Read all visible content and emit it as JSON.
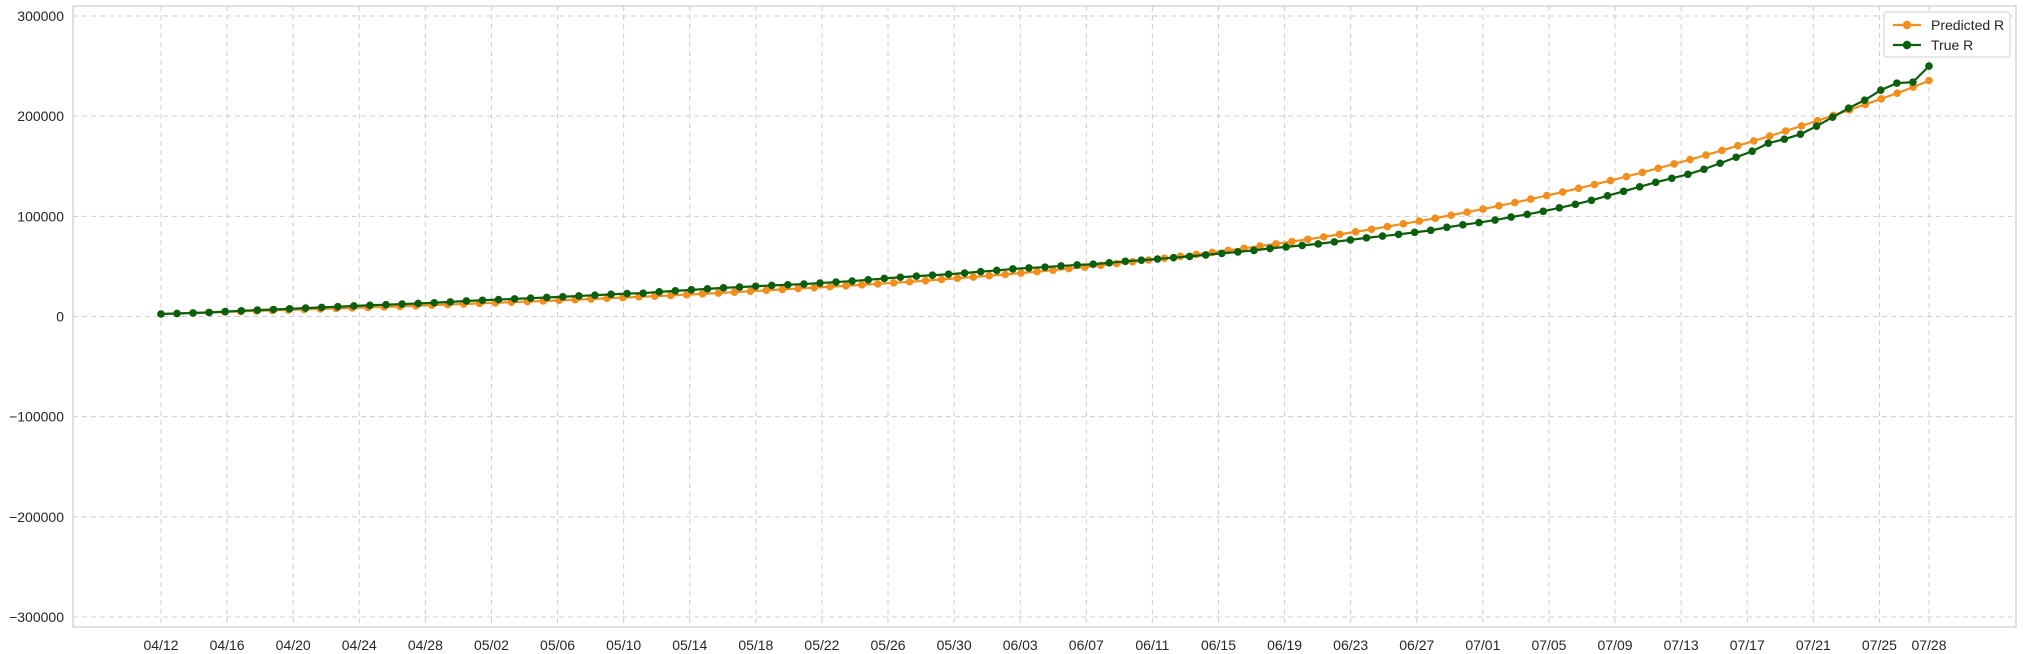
{
  "chart_data": {
    "type": "line",
    "title": "",
    "xlabel": "",
    "ylabel": "",
    "ylim": [
      -310000,
      310000
    ],
    "yticks": [
      -300000,
      -200000,
      -100000,
      0,
      100000,
      200000,
      300000
    ],
    "ytick_labels": [
      "−300000",
      "−200000",
      "−100000",
      "0",
      "100000",
      "200000",
      "300000"
    ],
    "xticks": [
      "04/12",
      "04/16",
      "04/20",
      "04/24",
      "04/28",
      "05/02",
      "05/06",
      "05/10",
      "05/14",
      "05/18",
      "05/22",
      "05/26",
      "05/30",
      "06/03",
      "06/07",
      "06/11",
      "06/15",
      "06/19",
      "06/23",
      "06/27",
      "07/01",
      "07/05",
      "07/09",
      "07/13",
      "07/17",
      "07/21",
      "07/25",
      "07/28"
    ],
    "x_start": "04/12",
    "x_end": "07/28",
    "grid": true,
    "legend_position": "top-right",
    "colors": {
      "predicted": "#f28e1c",
      "true": "#0b5e0b",
      "grid": "#cfcfcf",
      "axes": "#cccccc"
    },
    "series": [
      {
        "name": "Predicted R",
        "color": "#f28e1c",
        "values": [
          2500,
          3100,
          3600,
          4100,
          4600,
          5100,
          5600,
          6100,
          6600,
          7100,
          7600,
          8100,
          8600,
          9100,
          9600,
          10100,
          10700,
          11300,
          11900,
          12500,
          13100,
          13700,
          14300,
          14900,
          15500,
          16100,
          16800,
          17500,
          18200,
          18900,
          19600,
          20300,
          21000,
          21800,
          22600,
          23400,
          24300,
          25200,
          26100,
          27000,
          27900,
          28800,
          29700,
          30600,
          31600,
          32600,
          33600,
          34700,
          35800,
          37000,
          38200,
          39400,
          40700,
          42000,
          43400,
          44800,
          46300,
          47800,
          49400,
          51100,
          52800,
          54600,
          56400,
          58200,
          60100,
          62000,
          64000,
          66000,
          68100,
          70300,
          72500,
          74800,
          77100,
          79500,
          82000,
          84500,
          87100,
          89800,
          92500,
          95300,
          98200,
          101200,
          104200,
          107300,
          110500,
          113800,
          117200,
          120700,
          124300,
          128000,
          131800,
          135700,
          139700,
          143800,
          148000,
          152300,
          156700,
          161200,
          165800,
          170500,
          175300,
          180200,
          185200,
          190300,
          195500,
          200800,
          206200,
          211700,
          217300,
          223000,
          229000,
          235500
        ]
      },
      {
        "name": "True R",
        "color": "#0b5e0b",
        "values": [
          2500,
          3000,
          3500,
          4000,
          4900,
          5700,
          6400,
          7000,
          7700,
          8400,
          9100,
          9800,
          10500,
          11200,
          11800,
          12400,
          13000,
          13700,
          14600,
          15500,
          16200,
          16900,
          17600,
          18300,
          19000,
          19700,
          20500,
          21300,
          22100,
          22900,
          23300,
          24600,
          25600,
          26600,
          27600,
          28600,
          29400,
          30200,
          31000,
          31700,
          32400,
          33400,
          34400,
          35400,
          36600,
          38000,
          39200,
          40300,
          41200,
          42200,
          43400,
          44800,
          46000,
          47500,
          48500,
          49300,
          50500,
          51500,
          52200,
          53600,
          55100,
          56200,
          57400,
          58700,
          60000,
          61500,
          63000,
          64500,
          66000,
          68000,
          69500,
          71000,
          72500,
          74500,
          76500,
          78500,
          80300,
          82000,
          84000,
          86000,
          89000,
          91500,
          93800,
          96300,
          99300,
          102000,
          105000,
          108500,
          112000,
          116000,
          120500,
          125000,
          129500,
          134000,
          138000,
          142000,
          147000,
          153000,
          159000,
          165000,
          173000,
          177000,
          182000,
          190000,
          199000,
          208000,
          216000,
          226000,
          233000,
          234000,
          250000
        ]
      }
    ]
  }
}
